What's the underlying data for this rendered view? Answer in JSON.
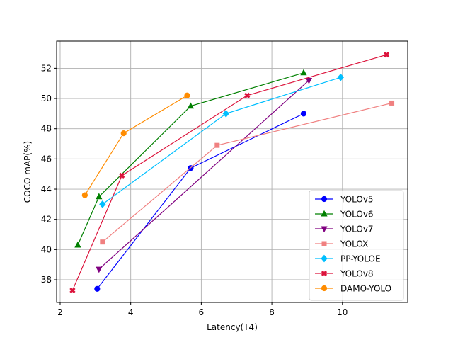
{
  "chart_data": {
    "type": "line",
    "title": "",
    "xlabel": "Latency(T4)",
    "ylabel": "COCO mAP(%)",
    "xlim": [
      1.9,
      11.85
    ],
    "ylim": [
      36.5,
      53.8
    ],
    "xticks": [
      2,
      4,
      6,
      8,
      10
    ],
    "yticks": [
      38,
      40,
      42,
      44,
      46,
      48,
      50,
      52
    ],
    "grid": true,
    "legend_position": "lower-right",
    "series": [
      {
        "name": "YOLOv5",
        "color": "#0000ff",
        "marker": "circle",
        "x": [
          3.05,
          5.7,
          8.9
        ],
        "y": [
          37.4,
          45.4,
          49.0
        ]
      },
      {
        "name": "YOLOv6",
        "color": "#008000",
        "marker": "triangle-up",
        "x": [
          2.5,
          3.1,
          5.7,
          8.9
        ],
        "y": [
          40.3,
          43.5,
          49.5,
          51.7
        ]
      },
      {
        "name": "YOLOv7",
        "color": "#800080",
        "marker": "triangle-down",
        "x": [
          3.1,
          9.05
        ],
        "y": [
          38.7,
          51.2
        ]
      },
      {
        "name": "YOLOX",
        "color": "#f08080",
        "marker": "square",
        "x": [
          3.2,
          6.45,
          11.4
        ],
        "y": [
          40.5,
          46.9,
          49.7
        ]
      },
      {
        "name": "PP-YOLOE",
        "color": "#00bfff",
        "marker": "diamond",
        "x": [
          3.2,
          6.7,
          9.95
        ],
        "y": [
          43.0,
          49.0,
          51.4
        ]
      },
      {
        "name": "YOLOv8",
        "color": "#dc143c",
        "marker": "x-filled",
        "x": [
          2.35,
          3.75,
          7.3,
          11.25
        ],
        "y": [
          37.3,
          44.9,
          50.2,
          52.9
        ]
      },
      {
        "name": "DAMO-YOLO",
        "color": "#ff8c00",
        "marker": "circle",
        "x": [
          2.7,
          3.8,
          5.6
        ],
        "y": [
          43.6,
          47.7,
          50.2
        ]
      }
    ]
  }
}
